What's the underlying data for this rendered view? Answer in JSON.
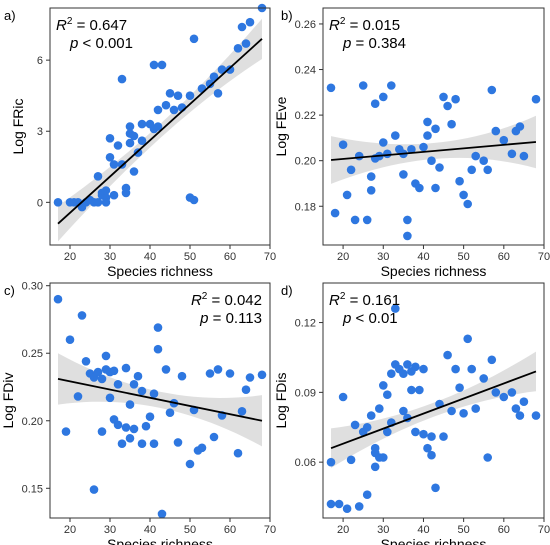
{
  "chart_data": [
    {
      "type": "scatter",
      "panel_label": "a)",
      "xlabel": "Species richness",
      "ylabel": "Log FRic",
      "r2_symbol": "R",
      "r2_exp": "2",
      "r2_eq": " = 0.647",
      "p_symbol": "p",
      "p_rel": " < 0.001",
      "stats_position": "top-left",
      "xlim": [
        15,
        70
      ],
      "ylim": [
        -1.8,
        8.2
      ],
      "xticks": [
        20,
        30,
        40,
        50,
        60,
        70
      ],
      "yticks": [
        0,
        3,
        6
      ],
      "fit": {
        "x": [
          17,
          68
        ],
        "y": [
          -0.9,
          6.9
        ]
      },
      "band_halfwidth": [
        0.75,
        0.3,
        0.85
      ],
      "points": {
        "x": [
          17,
          20,
          21,
          22,
          23,
          24,
          25,
          26,
          27,
          27,
          28,
          28,
          29,
          29,
          29,
          30,
          30,
          31,
          31,
          32,
          33,
          33,
          34,
          34,
          35,
          35,
          35,
          36,
          36,
          37,
          38,
          38,
          40,
          41,
          41,
          42,
          42,
          43,
          44,
          45,
          46,
          47,
          48,
          50,
          50,
          51,
          51,
          53,
          55,
          56,
          57,
          58,
          60,
          62,
          63,
          64,
          65,
          68
        ],
        "y": [
          0,
          0,
          0,
          0,
          -0.2,
          0,
          0.1,
          0,
          1.1,
          0,
          0.4,
          0.3,
          0.2,
          0.5,
          0,
          1.9,
          2.7,
          0.3,
          1.6,
          2.4,
          1.6,
          5.2,
          0.4,
          0.6,
          2.5,
          2.9,
          3.2,
          2.8,
          1.3,
          2.1,
          3.3,
          2.6,
          3.3,
          5.8,
          3.1,
          3.2,
          3.9,
          5.8,
          4.1,
          4.6,
          3.9,
          4.5,
          4.0,
          0.2,
          4.5,
          6.9,
          0.1,
          4.8,
          5.0,
          5.3,
          4.6,
          5.6,
          5.6,
          6.5,
          7.4,
          6.7,
          7.6,
          8.2
        ]
      }
    },
    {
      "type": "scatter",
      "panel_label": "b)",
      "xlabel": "Species richness",
      "ylabel": "Log FEve",
      "r2_symbol": "R",
      "r2_exp": "2",
      "r2_eq": " = 0.015",
      "p_symbol": "p",
      "p_rel": " = 0.384",
      "stats_position": "top-left",
      "xlim": [
        15,
        70
      ],
      "ylim": [
        0.163,
        0.267
      ],
      "xticks": [
        20,
        30,
        40,
        50,
        60,
        70
      ],
      "yticks": [
        0.18,
        0.2,
        0.22,
        0.24,
        0.26
      ],
      "fit": {
        "x": [
          17,
          68
        ],
        "y": [
          0.2003,
          0.2082
        ]
      },
      "band_halfwidth": [
        0.0105,
        0.0035,
        0.0115
      ],
      "points": {
        "x": [
          17,
          18,
          20,
          21,
          22,
          23,
          24,
          25,
          26,
          27,
          27,
          28,
          28,
          29,
          30,
          30,
          31,
          32,
          33,
          34,
          35,
          35,
          36,
          36,
          37,
          38,
          39,
          40,
          41,
          41,
          42,
          43,
          43,
          44,
          45,
          46,
          47,
          48,
          49,
          50,
          51,
          52,
          53,
          55,
          56,
          57,
          58,
          60,
          62,
          63,
          64,
          65,
          68
        ],
        "y": [
          0.232,
          0.177,
          0.207,
          0.185,
          0.196,
          0.174,
          0.202,
          0.233,
          0.174,
          0.193,
          0.187,
          0.201,
          0.225,
          0.202,
          0.208,
          0.228,
          0.203,
          0.233,
          0.211,
          0.205,
          0.194,
          0.203,
          0.174,
          0.167,
          0.205,
          0.19,
          0.188,
          0.206,
          0.211,
          0.217,
          0.2,
          0.214,
          0.188,
          0.197,
          0.228,
          0.224,
          0.216,
          0.227,
          0.191,
          0.185,
          0.181,
          0.196,
          0.202,
          0.2,
          0.196,
          0.231,
          0.213,
          0.209,
          0.203,
          0.213,
          0.215,
          0.202,
          0.227
        ]
      }
    },
    {
      "type": "scatter",
      "panel_label": "c)",
      "xlabel": "Species richness",
      "ylabel": "Log FDiv",
      "r2_symbol": "R",
      "r2_exp": "2",
      "r2_eq": " = 0.042",
      "p_symbol": "p",
      "p_rel": " = 0.113",
      "stats_position": "top-right",
      "xlim": [
        15,
        70
      ],
      "ylim": [
        0.128,
        0.302
      ],
      "xticks": [
        20,
        30,
        40,
        50,
        60,
        70
      ],
      "yticks": [
        0.15,
        0.2,
        0.25,
        0.3
      ],
      "fit": {
        "x": [
          17,
          68
        ],
        "y": [
          0.231,
          0.2
        ]
      },
      "band_halfwidth": [
        0.019,
        0.006,
        0.019
      ],
      "points": {
        "x": [
          17,
          19,
          20,
          22,
          23,
          24,
          25,
          26,
          26,
          27,
          28,
          28,
          29,
          29,
          30,
          30,
          31,
          31,
          32,
          32,
          33,
          34,
          34,
          35,
          35,
          36,
          36,
          37,
          38,
          38,
          39,
          40,
          41,
          41,
          42,
          42,
          43,
          44,
          45,
          46,
          47,
          48,
          50,
          51,
          52,
          53,
          55,
          56,
          57,
          58,
          60,
          62,
          63,
          64,
          65,
          68
        ],
        "y": [
          0.29,
          0.192,
          0.26,
          0.218,
          0.278,
          0.244,
          0.235,
          0.149,
          0.232,
          0.236,
          0.231,
          0.192,
          0.248,
          0.238,
          0.236,
          0.217,
          0.237,
          0.201,
          0.197,
          0.227,
          0.183,
          0.195,
          0.239,
          0.187,
          0.212,
          0.194,
          0.227,
          0.233,
          0.222,
          0.183,
          0.196,
          0.203,
          0.183,
          0.22,
          0.269,
          0.253,
          0.131,
          0.238,
          0.206,
          0.213,
          0.184,
          0.233,
          0.168,
          0.208,
          0.178,
          0.18,
          0.235,
          0.188,
          0.238,
          0.204,
          0.235,
          0.176,
          0.207,
          0.223,
          0.232,
          0.234
        ]
      }
    },
    {
      "type": "scatter",
      "panel_label": "d)",
      "xlabel": "Species richness",
      "ylabel": "Log FDis",
      "r2_symbol": "R",
      "r2_exp": "2",
      "r2_eq": " = 0.161",
      "p_symbol": "p",
      "p_rel": " < 0.01",
      "stats_position": "top-left",
      "xlim": [
        15,
        70
      ],
      "ylim": [
        0.036,
        0.137
      ],
      "xticks": [
        20,
        30,
        40,
        50,
        60,
        70
      ],
      "yticks": [
        0.06,
        0.09,
        0.12
      ],
      "fit": {
        "x": [
          17,
          68
        ],
        "y": [
          0.066,
          0.099
        ]
      },
      "band_halfwidth": [
        0.0085,
        0.003,
        0.0085
      ],
      "points": {
        "x": [
          17,
          17,
          19,
          20,
          21,
          22,
          23,
          24,
          25,
          26,
          26,
          27,
          28,
          28,
          28,
          29,
          29,
          30,
          30,
          31,
          31,
          32,
          32,
          33,
          33,
          34,
          35,
          35,
          36,
          36,
          37,
          37,
          38,
          38,
          39,
          40,
          40,
          41,
          42,
          42,
          43,
          44,
          45,
          46,
          47,
          48,
          49,
          50,
          51,
          52,
          53,
          55,
          56,
          57,
          58,
          60,
          62,
          63,
          64,
          65,
          68
        ],
        "y": [
          0.06,
          0.042,
          0.042,
          0.088,
          0.04,
          0.061,
          0.076,
          0.041,
          0.073,
          0.046,
          0.075,
          0.08,
          0.058,
          0.066,
          0.064,
          0.083,
          0.062,
          0.093,
          0.062,
          0.089,
          0.073,
          0.098,
          0.077,
          0.126,
          0.102,
          0.1,
          0.082,
          0.098,
          0.079,
          0.102,
          0.099,
          0.091,
          0.101,
          0.073,
          0.091,
          0.072,
          0.1,
          0.066,
          0.063,
          0.071,
          0.049,
          0.085,
          0.071,
          0.106,
          0.082,
          0.1,
          0.092,
          0.081,
          0.113,
          0.1,
          0.083,
          0.096,
          0.062,
          0.104,
          0.09,
          0.088,
          0.09,
          0.083,
          0.08,
          0.086,
          0.08
        ]
      }
    }
  ],
  "colors": {
    "point": "#2e77e0",
    "fit": "#000000",
    "band": "#d2d2d2",
    "axis": "#333333"
  }
}
